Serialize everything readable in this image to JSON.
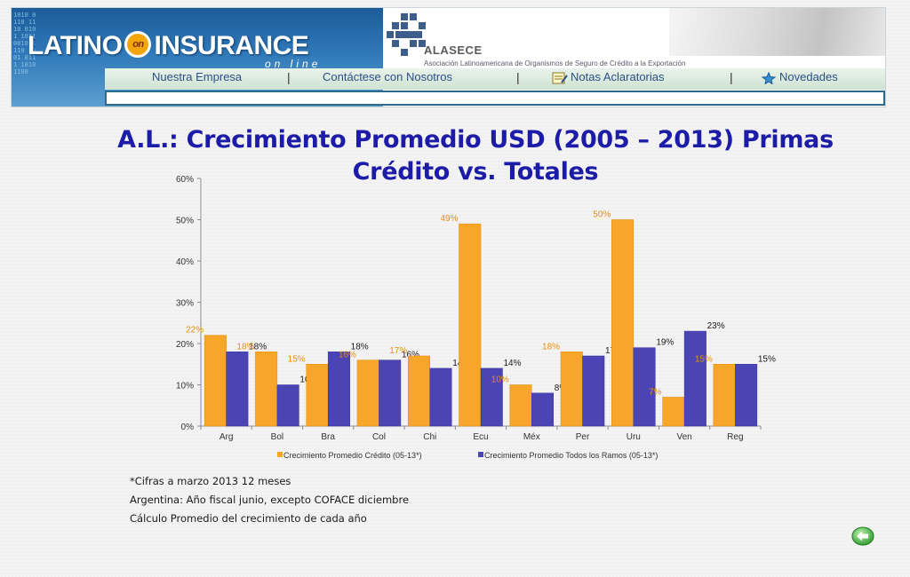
{
  "header": {
    "logo_title_left": "LATINO",
    "logo_on": "on",
    "logo_title_right": "INSURANCE",
    "logo_subtitle": "on line",
    "digits": "1010 0110 1110 0101 1011 0010 1110 1001 0111 1010 1100",
    "nav": [
      "Nuestra Empresa",
      "Contáctese con Nosotros",
      "Notas Aclaratorias",
      "Novedades"
    ],
    "nav_separator": "|",
    "alasece_name": "ALASECE",
    "alasece_subtitle": "Asociación Latinoamericana de Organismos de Seguro de Crédito a la Exportación"
  },
  "title": {
    "line1": "A.L.: Crecimiento Promedio USD (2005 – 2013) Primas",
    "line2": "Crédito vs. Totales"
  },
  "chart_data": {
    "type": "bar",
    "categories": [
      "Arg",
      "Bol",
      "Bra",
      "Col",
      "Chi",
      "Ecu",
      "Méx",
      "Per",
      "Uru",
      "Ven",
      "Reg"
    ],
    "series": [
      {
        "name": "Crecimiento Promedio Crédito (05-13*)",
        "color": "#f7a62a",
        "label_color": "#e8900e",
        "values": [
          22,
          18,
          15,
          16,
          17,
          49,
          10,
          18,
          50,
          7,
          15
        ]
      },
      {
        "name": "Crecimiento Promedio Todos los Ramos (05-13*)",
        "color": "#4a44b4",
        "label_color": "#1a1a1a",
        "values": [
          18,
          10,
          18,
          16,
          14,
          14,
          8,
          17,
          19,
          23,
          15
        ]
      }
    ],
    "y_ticks": [
      "0%",
      "10%",
      "20%",
      "30%",
      "40%",
      "50%",
      "60%"
    ],
    "ylim": [
      0,
      60
    ],
    "value_suffix": "%",
    "legend_position": "bottom"
  },
  "notes": [
    "*Cifras a marzo 2013 12 meses",
    "Argentina: Año fiscal junio, excepto COFACE diciembre",
    "Cálculo Promedio del crecimiento de cada año"
  ],
  "back_button_icon": "back-arrow-icon"
}
